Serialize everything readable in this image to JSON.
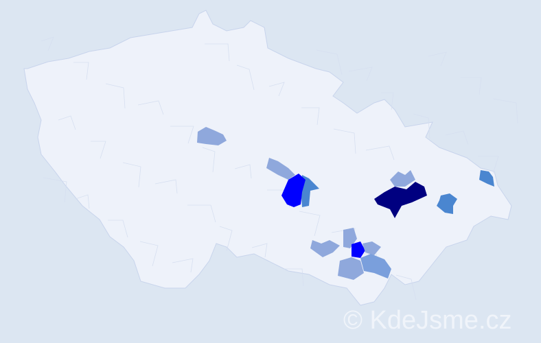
{
  "watermark": "© KdeJsme.cz",
  "colors": {
    "background": "#dce6f2",
    "country": "#eef2fa",
    "border": "#c8d4ec",
    "level_1": "#8fa8dc",
    "level_2": "#4a86d0",
    "level_3": "#0000ff",
    "level_4": "#000080"
  },
  "highlighted_districts": [
    {
      "level": 1
    },
    {
      "level": 1
    },
    {
      "level": 2
    },
    {
      "level": 3
    },
    {
      "level": 4
    },
    {
      "level": 1
    },
    {
      "level": 2
    },
    {
      "level": 2
    },
    {
      "level": 1
    },
    {
      "level": 1
    },
    {
      "level": 3
    },
    {
      "level": 1
    },
    {
      "level": 1
    },
    {
      "level": 1
    }
  ]
}
